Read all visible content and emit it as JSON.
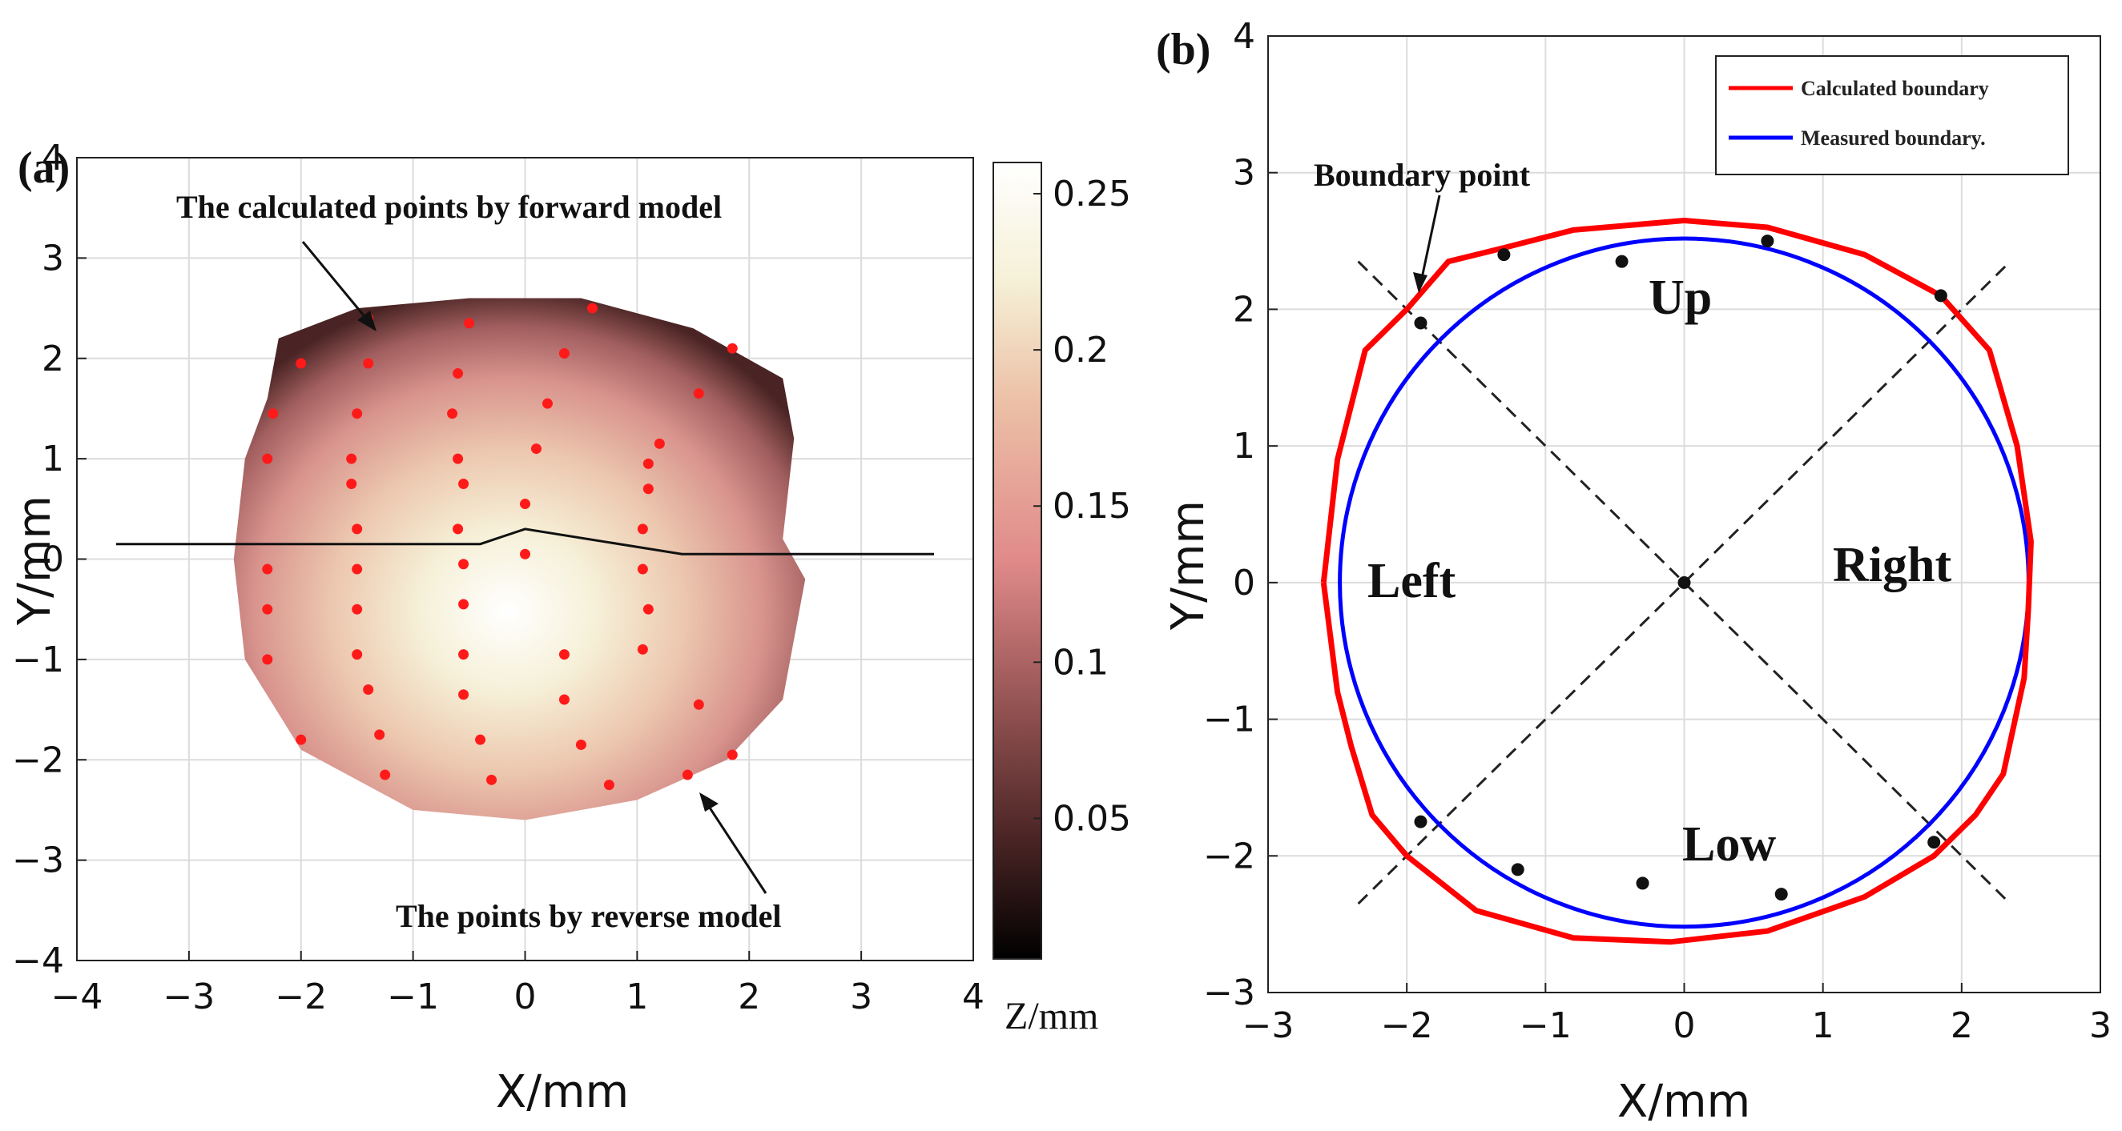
{
  "chart_data": [
    {
      "type": "scatter",
      "panel_label": "(a)",
      "xlabel": "X/mm",
      "ylabel": "Y/mm",
      "xlim": [
        -4,
        4
      ],
      "ylim": [
        -4,
        4
      ],
      "xticks": [
        -4,
        -3,
        -2,
        -1,
        0,
        1,
        2,
        3,
        4
      ],
      "yticks": [
        -4,
        -3,
        -2,
        -1,
        0,
        1,
        2,
        3,
        4
      ],
      "tick_labels": [
        "−4",
        "−3",
        "−2",
        "−1",
        "0",
        "1",
        "2",
        "3",
        "4"
      ],
      "grid": true,
      "colorbar": {
        "label": "Z/mm",
        "range": [
          0.005,
          0.26
        ],
        "ticks": [
          0.05,
          0.1,
          0.15,
          0.2,
          0.25
        ],
        "tick_labels": [
          "0.05",
          "0.1",
          "0.15",
          "0.2",
          "0.25"
        ],
        "colors": [
          "#000000",
          "#4a2424",
          "#a25c5c",
          "#e08a8a",
          "#ecc0a6",
          "#f5f0d6",
          "#ffffff"
        ]
      },
      "surface_boundary": [
        [
          -2.2,
          2.2
        ],
        [
          -1.5,
          2.5
        ],
        [
          -0.5,
          2.6
        ],
        [
          0.5,
          2.6
        ],
        [
          1.5,
          2.3
        ],
        [
          2.3,
          1.8
        ],
        [
          2.4,
          1.2
        ],
        [
          2.3,
          0.2
        ],
        [
          2.5,
          -0.2
        ],
        [
          2.3,
          -1.4
        ],
        [
          1.8,
          -2.0
        ],
        [
          1.0,
          -2.4
        ],
        [
          0.0,
          -2.6
        ],
        [
          -1.0,
          -2.5
        ],
        [
          -2.0,
          -1.9
        ],
        [
          -2.5,
          -1.0
        ],
        [
          -2.6,
          0.0
        ],
        [
          -2.5,
          1.0
        ],
        [
          -2.3,
          1.6
        ]
      ],
      "profile_line": [
        [
          -3.65,
          0.15
        ],
        [
          -0.4,
          0.15
        ],
        [
          0.0,
          0.3
        ],
        [
          1.4,
          0.05
        ],
        [
          3.65,
          0.05
        ]
      ],
      "points": [
        [
          -1.4,
          2.4
        ],
        [
          -0.5,
          2.35
        ],
        [
          0.6,
          2.5
        ],
        [
          1.85,
          2.1
        ],
        [
          -2.0,
          1.95
        ],
        [
          -1.4,
          1.95
        ],
        [
          -0.6,
          1.85
        ],
        [
          0.35,
          2.05
        ],
        [
          1.55,
          1.65
        ],
        [
          -2.25,
          1.45
        ],
        [
          -1.5,
          1.45
        ],
        [
          -0.65,
          1.45
        ],
        [
          0.2,
          1.55
        ],
        [
          1.2,
          1.15
        ],
        [
          -2.3,
          1.0
        ],
        [
          -1.55,
          1.0
        ],
        [
          -0.6,
          1.0
        ],
        [
          0.1,
          1.1
        ],
        [
          1.1,
          0.95
        ],
        [
          -1.55,
          0.75
        ],
        [
          -0.55,
          0.75
        ],
        [
          0.0,
          0.55
        ],
        [
          1.1,
          0.7
        ],
        [
          -1.5,
          0.3
        ],
        [
          -0.6,
          0.3
        ],
        [
          1.05,
          0.3
        ],
        [
          -2.3,
          -0.1
        ],
        [
          -1.5,
          -0.1
        ],
        [
          -0.55,
          -0.05
        ],
        [
          0.0,
          0.05
        ],
        [
          1.05,
          -0.1
        ],
        [
          -2.3,
          -0.5
        ],
        [
          -1.5,
          -0.5
        ],
        [
          -0.55,
          -0.45
        ],
        [
          1.1,
          -0.5
        ],
        [
          -1.5,
          -0.95
        ],
        [
          -0.55,
          -0.95
        ],
        [
          0.35,
          -0.95
        ],
        [
          1.05,
          -0.9
        ],
        [
          -2.3,
          -1.0
        ],
        [
          -1.4,
          -1.3
        ],
        [
          -0.55,
          -1.35
        ],
        [
          0.35,
          -1.4
        ],
        [
          1.55,
          -1.45
        ],
        [
          -1.3,
          -1.75
        ],
        [
          -0.4,
          -1.8
        ],
        [
          0.5,
          -1.85
        ],
        [
          -2.0,
          -1.8
        ],
        [
          1.85,
          -1.95
        ],
        [
          -1.25,
          -2.15
        ],
        [
          -0.3,
          -2.2
        ],
        [
          0.75,
          -2.25
        ],
        [
          1.45,
          -2.15
        ]
      ],
      "annotations": [
        "The calculated points by forward model",
        "The points by reverse model"
      ]
    },
    {
      "type": "line",
      "panel_label": "(b)",
      "xlabel": "X/mm",
      "ylabel": "Y/mm",
      "xlim": [
        -3,
        3
      ],
      "ylim": [
        -3,
        4
      ],
      "xticks": [
        -3,
        -2,
        -1,
        0,
        1,
        2,
        3
      ],
      "yticks": [
        -3,
        -2,
        -1,
        0,
        1,
        2,
        3,
        4
      ],
      "xtick_labels": [
        "−3",
        "−2",
        "−1",
        "0",
        "1",
        "2",
        "3"
      ],
      "ytick_labels": [
        "−3",
        "−2",
        "−1",
        "0",
        "1",
        "2",
        "3",
        "4"
      ],
      "grid": true,
      "legend": "top-right",
      "series": [
        {
          "name": "Calculated boundary",
          "color": "#ff0000",
          "points": [
            [
              -2.6,
              0.0
            ],
            [
              -2.5,
              0.9
            ],
            [
              -2.3,
              1.7
            ],
            [
              -2.0,
              2.0
            ],
            [
              -1.7,
              2.35
            ],
            [
              -1.3,
              2.45
            ],
            [
              -0.8,
              2.58
            ],
            [
              0.0,
              2.65
            ],
            [
              0.6,
              2.6
            ],
            [
              1.3,
              2.4
            ],
            [
              1.85,
              2.1
            ],
            [
              2.2,
              1.7
            ],
            [
              2.4,
              1.0
            ],
            [
              2.5,
              0.3
            ],
            [
              2.48,
              -0.2
            ],
            [
              2.45,
              -0.7
            ],
            [
              2.3,
              -1.4
            ],
            [
              2.1,
              -1.7
            ],
            [
              1.8,
              -2.0
            ],
            [
              1.3,
              -2.3
            ],
            [
              0.6,
              -2.55
            ],
            [
              -0.1,
              -2.63
            ],
            [
              -0.8,
              -2.6
            ],
            [
              -1.5,
              -2.4
            ],
            [
              -2.0,
              -2.0
            ],
            [
              -2.25,
              -1.7
            ],
            [
              -2.4,
              -1.2
            ],
            [
              -2.5,
              -0.8
            ],
            [
              -2.6,
              0.0
            ]
          ]
        },
        {
          "name": "Measured boundary.",
          "color": "#0000ff",
          "circle": {
            "center": [
              0,
              0
            ],
            "radius": 2.5
          }
        }
      ],
      "diagonals": [
        [
          [
            -2.35,
            2.35
          ],
          [
            2.35,
            -2.35
          ]
        ],
        [
          [
            -2.35,
            -2.35
          ],
          [
            2.35,
            2.35
          ]
        ]
      ],
      "boundary_points": [
        [
          -1.9,
          1.9
        ],
        [
          -1.3,
          2.4
        ],
        [
          -0.45,
          2.35
        ],
        [
          0.6,
          2.5
        ],
        [
          1.85,
          2.1
        ],
        [
          0.0,
          0.0
        ],
        [
          -1.9,
          -1.75
        ],
        [
          -1.2,
          -2.1
        ],
        [
          -0.3,
          -2.2
        ],
        [
          0.7,
          -2.28
        ],
        [
          1.8,
          -1.9
        ]
      ],
      "annotations": [
        "Boundary point"
      ],
      "region_labels": [
        "Up",
        "Left",
        "Right",
        "Low"
      ]
    }
  ]
}
